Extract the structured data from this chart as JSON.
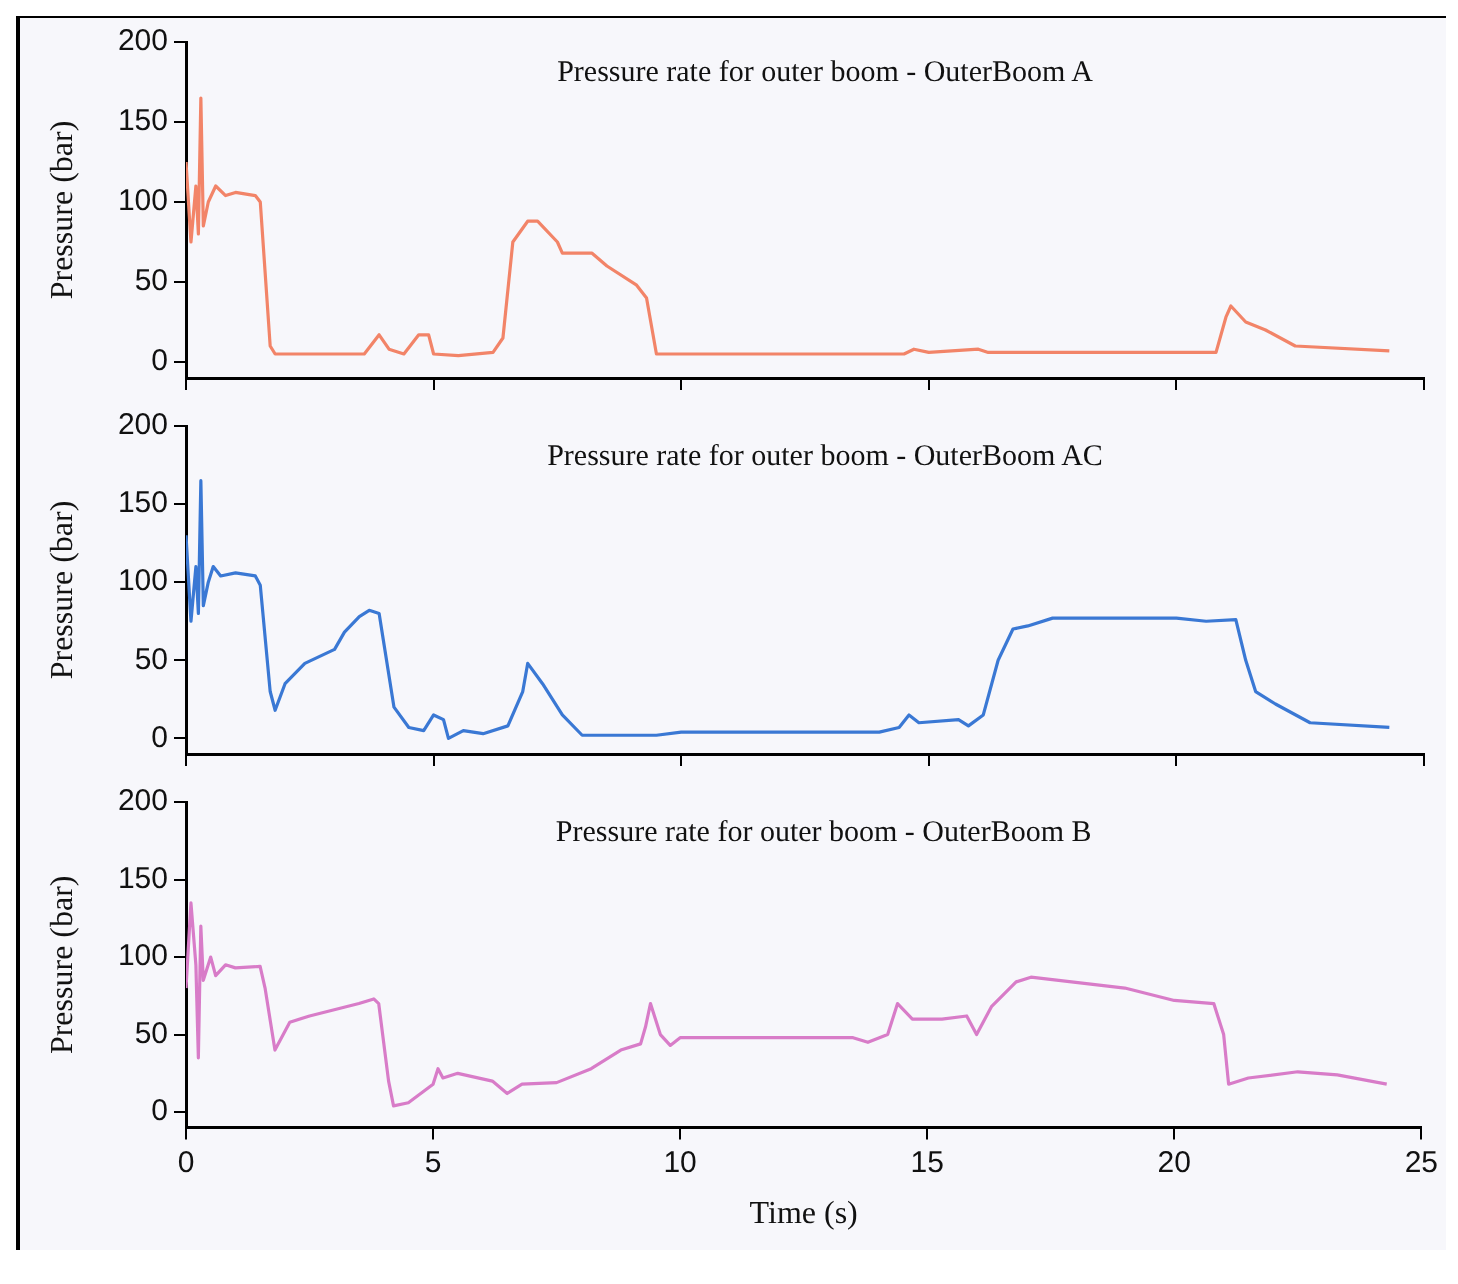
{
  "chart_data": [
    {
      "type": "line",
      "title": "Pressure rate for outer boom - OuterBoom A",
      "ylabel": "Pressure (bar)",
      "xlim": [
        0,
        25
      ],
      "xticks": [
        0,
        5,
        10,
        15,
        20,
        25
      ],
      "ylim": [
        -10,
        200
      ],
      "yticks": [
        0,
        50,
        100,
        150,
        200
      ],
      "tick_labels": "y",
      "grid": false,
      "legend": false,
      "marker": "none",
      "line_style": "solid",
      "series": [
        {
          "color": "#f28468",
          "x": [
            0,
            0.1,
            0.2,
            0.25,
            0.3,
            0.35,
            0.45,
            0.6,
            0.8,
            1.0,
            1.4,
            1.5,
            1.7,
            1.8,
            3.6,
            3.9,
            4.1,
            4.4,
            4.7,
            4.9,
            5.0,
            5.5,
            6.2,
            6.4,
            6.6,
            6.9,
            7.1,
            7.5,
            7.6,
            8.2,
            8.5,
            9.1,
            9.3,
            9.5,
            14.5,
            14.7,
            15.0,
            16.0,
            16.2,
            20.8,
            21.0,
            21.1,
            21.4,
            21.8,
            22.4,
            24.3
          ],
          "values": [
            125,
            75,
            110,
            80,
            165,
            85,
            100,
            110,
            104,
            106,
            104,
            100,
            10,
            5,
            5,
            17,
            8,
            5,
            17,
            17,
            5,
            4,
            6,
            15,
            75,
            88,
            88,
            75,
            68,
            68,
            60,
            48,
            40,
            5,
            5,
            8,
            6,
            8,
            6,
            6,
            28,
            35,
            25,
            20,
            10,
            7
          ]
        }
      ]
    },
    {
      "type": "line",
      "title": "Pressure rate for outer boom - OuterBoom AC",
      "ylabel": "Pressure (bar)",
      "xlim": [
        0,
        25
      ],
      "xticks": [
        0,
        5,
        10,
        15,
        20,
        25
      ],
      "ylim": [
        -10,
        200
      ],
      "yticks": [
        0,
        50,
        100,
        150,
        200
      ],
      "tick_labels": "y",
      "grid": false,
      "legend": false,
      "marker": "none",
      "line_style": "solid",
      "series": [
        {
          "color": "#3a78d4",
          "x": [
            0,
            0.1,
            0.2,
            0.25,
            0.3,
            0.35,
            0.45,
            0.55,
            0.7,
            1.0,
            1.4,
            1.5,
            1.7,
            1.8,
            2.0,
            2.4,
            3.0,
            3.2,
            3.5,
            3.7,
            3.9,
            4.0,
            4.2,
            4.5,
            4.8,
            5.0,
            5.2,
            5.3,
            5.6,
            6.0,
            6.5,
            6.8,
            6.9,
            7.2,
            7.6,
            8.0,
            9.5,
            10,
            14.0,
            14.4,
            14.6,
            14.8,
            15.6,
            15.8,
            16.1,
            16.4,
            16.7,
            17.0,
            17.5,
            20.0,
            20.6,
            21.2,
            21.4,
            21.6,
            22.0,
            22.7,
            24.3
          ],
          "values": [
            130,
            75,
            110,
            80,
            165,
            85,
            100,
            110,
            104,
            106,
            104,
            98,
            30,
            18,
            35,
            48,
            57,
            68,
            78,
            82,
            80,
            60,
            20,
            7,
            5,
            15,
            12,
            0,
            5,
            3,
            8,
            30,
            48,
            35,
            15,
            2,
            2,
            4,
            4,
            7,
            15,
            10,
            12,
            8,
            15,
            50,
            70,
            72,
            77,
            77,
            75,
            76,
            50,
            30,
            22,
            10,
            7
          ]
        }
      ]
    },
    {
      "type": "line",
      "title": "Pressure rate for outer boom - OuterBoom B",
      "xlabel": "Time (s)",
      "ylabel": "Pressure (bar)",
      "xlim": [
        0,
        25
      ],
      "xticks": [
        0,
        5,
        10,
        15,
        20,
        25
      ],
      "ylim": [
        -10,
        200
      ],
      "yticks": [
        0,
        50,
        100,
        150,
        200
      ],
      "grid": false,
      "legend": false,
      "marker": "none",
      "line_style": "solid",
      "series": [
        {
          "color": "#d87cc8",
          "x": [
            0,
            0.1,
            0.2,
            0.25,
            0.3,
            0.35,
            0.5,
            0.6,
            0.8,
            1.0,
            1.5,
            1.6,
            1.8,
            2.1,
            2.5,
            3.0,
            3.5,
            3.8,
            3.9,
            4.1,
            4.2,
            4.5,
            5.0,
            5.1,
            5.2,
            5.5,
            6.2,
            6.5,
            6.8,
            7.5,
            8.2,
            8.8,
            9.2,
            9.3,
            9.4,
            9.6,
            9.8,
            10,
            13.5,
            13.8,
            14.2,
            14.4,
            14.7,
            15.3,
            15.8,
            16.0,
            16.3,
            16.8,
            17.1,
            19.0,
            20.0,
            20.8,
            21.0,
            21.1,
            21.5,
            22.5,
            23.3,
            24.3
          ],
          "values": [
            80,
            135,
            95,
            35,
            120,
            85,
            100,
            88,
            95,
            93,
            94,
            80,
            40,
            58,
            62,
            66,
            70,
            73,
            70,
            20,
            4,
            6,
            18,
            28,
            22,
            25,
            20,
            12,
            18,
            19,
            28,
            40,
            44,
            55,
            70,
            50,
            43,
            48,
            48,
            45,
            50,
            70,
            60,
            60,
            62,
            50,
            68,
            84,
            87,
            80,
            72,
            70,
            50,
            18,
            22,
            26,
            24,
            18
          ]
        }
      ]
    }
  ]
}
